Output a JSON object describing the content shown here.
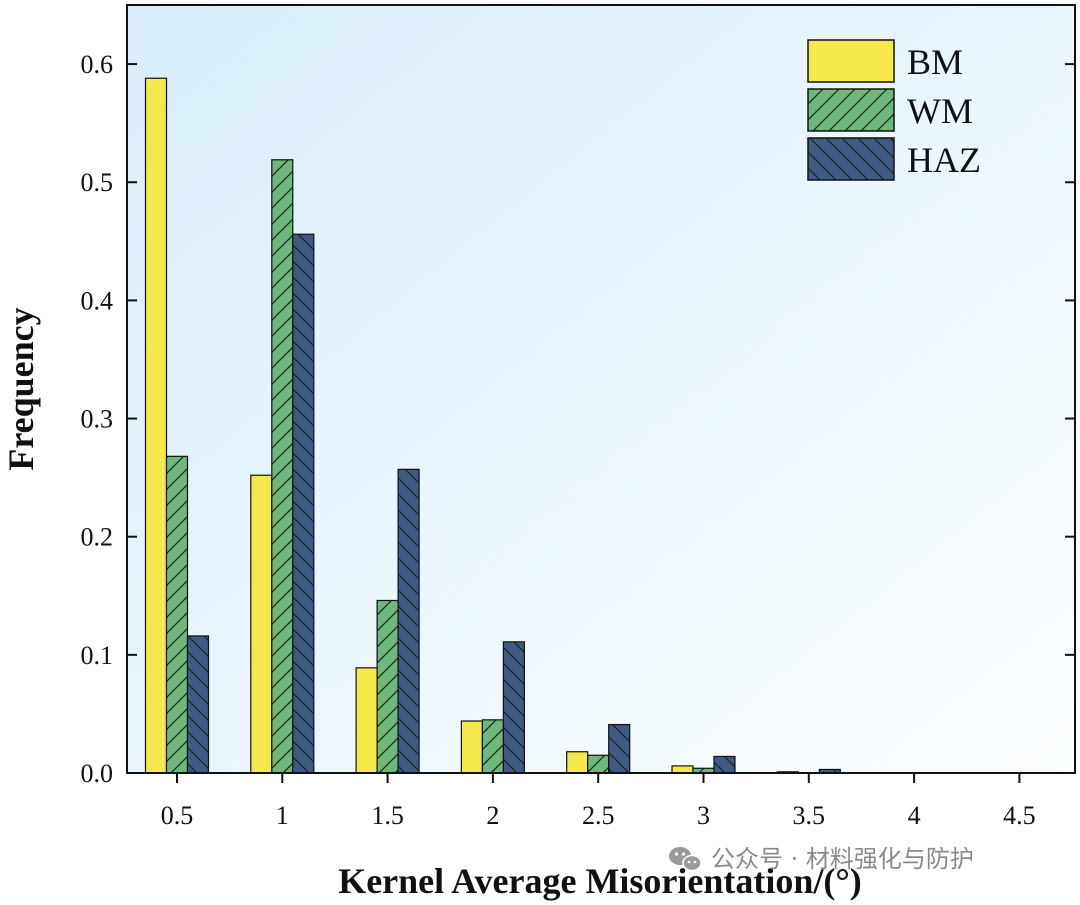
{
  "chart_data": {
    "type": "bar",
    "title": "",
    "xlabel": "Kernel Average Misorientation/(°)",
    "ylabel": "Frequency",
    "categories": [
      "0.5",
      "1",
      "1.5",
      "2",
      "2.5",
      "3",
      "3.5",
      "4",
      "4.5"
    ],
    "ylim": [
      0,
      0.65
    ],
    "yticks": [
      "0.0",
      "0.1",
      "0.2",
      "0.3",
      "0.4",
      "0.5",
      "0.6"
    ],
    "grid": false,
    "legend_position": "top-right",
    "series": [
      {
        "name": "BM",
        "color": "#f5e84a",
        "pattern": "solid",
        "values": [
          0.588,
          0.252,
          0.089,
          0.044,
          0.018,
          0.006,
          0.001,
          0.0,
          0.0
        ]
      },
      {
        "name": "WM",
        "color": "#6db87a",
        "pattern": "forward-hatch",
        "values": [
          0.268,
          0.519,
          0.146,
          0.045,
          0.015,
          0.004,
          0.0,
          0.0,
          0.0
        ]
      },
      {
        "name": "HAZ",
        "color": "#3e5a85",
        "pattern": "back-hatch",
        "values": [
          0.116,
          0.456,
          0.257,
          0.111,
          0.041,
          0.014,
          0.003,
          0.0,
          0.0
        ]
      }
    ]
  },
  "colors": {
    "background_top_left": "#d8eefa",
    "background_bottom_right": "#fbfdfe",
    "axis": "#111111"
  },
  "watermark": {
    "icon": "wechat-icon",
    "text": "公众号 · 材料强化与防护"
  }
}
